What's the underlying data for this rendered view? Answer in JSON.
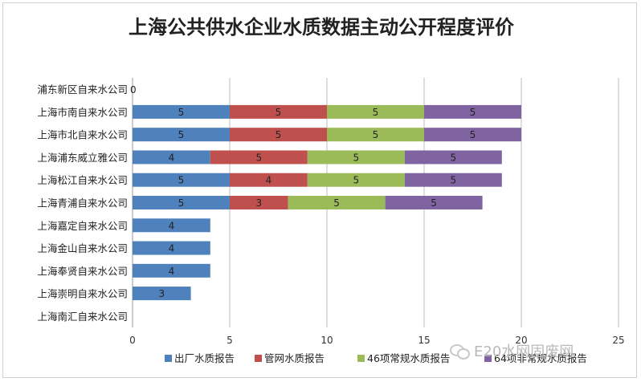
{
  "chart_data": {
    "type": "bar",
    "orientation": "horizontal",
    "stacked": true,
    "title": "上海公共供水企业水质数据主动公开程度评价",
    "categories": [
      "浦东新区自来水公司",
      "上海市南自来水公司",
      "上海市北自来水公司",
      "上海浦东威立雅公司",
      "上海松江自来水公司",
      "上海青浦自来水公司",
      "上海嘉定自来水公司",
      "上海金山自来水公司",
      "上海奉贤自来水公司",
      "上海崇明自来水公司",
      "上海南汇自来水公司"
    ],
    "series": [
      {
        "name": "出厂水质报告",
        "color": "#4F81BD",
        "values": [
          0,
          5,
          5,
          4,
          5,
          5,
          4,
          4,
          4,
          3,
          null
        ]
      },
      {
        "name": "管网水质报告",
        "color": "#C0504D",
        "values": [
          null,
          5,
          5,
          5,
          4,
          3,
          null,
          null,
          null,
          null,
          null
        ]
      },
      {
        "name": "46项常规水质报告",
        "color": "#9BBB59",
        "values": [
          null,
          5,
          5,
          5,
          5,
          5,
          null,
          null,
          null,
          null,
          null
        ]
      },
      {
        "name": "64项非常规水质报告",
        "color": "#8064A2",
        "values": [
          null,
          5,
          5,
          5,
          5,
          5,
          null,
          null,
          null,
          null,
          null
        ]
      }
    ],
    "xlim": [
      0,
      25
    ],
    "xticks": [
      0,
      5,
      10,
      15,
      20,
      25
    ],
    "grid": true,
    "legend_position": "bottom",
    "data_labels": true
  },
  "watermark": "E20水网固废网"
}
